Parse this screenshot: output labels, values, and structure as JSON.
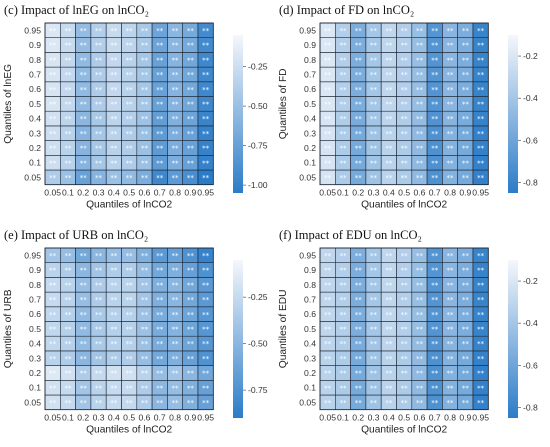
{
  "chart_data": [
    {
      "type": "heatmap",
      "title": "(c) Impact of lnEG on lnCO₂",
      "xlabel": "Quantiles of lnCO2",
      "ylabel": "Quantiles of lnEG",
      "x_categories": [
        "0.05",
        "0.1",
        "0.2",
        "0.3",
        "0.4",
        "0.5",
        "0.6",
        "0.7",
        "0.8",
        "0.9",
        "0.95"
      ],
      "y_categories": [
        "0.05",
        "0.1",
        "0.2",
        "0.3",
        "0.4",
        "0.5",
        "0.6",
        "0.7",
        "0.8",
        "0.9",
        "0.95"
      ],
      "cell_label": "**",
      "color_range": [
        -1.05,
        -0.05
      ],
      "colorbar_ticks": [
        -0.25,
        -0.5,
        -0.75,
        -1.0
      ],
      "colorbar_tick_labels": [
        "-0.25",
        "-0.50",
        "-0.75",
        "-1.00"
      ],
      "column_values": [
        -0.2,
        -0.3,
        -0.55,
        -0.4,
        -0.3,
        -0.35,
        -0.45,
        -0.75,
        -0.6,
        -0.7,
        -0.95
      ],
      "row_values": [
        -0.2,
        -0.05,
        -0.05,
        -0.05,
        -0.03,
        0.0,
        0.0,
        0.0,
        0.0,
        0.02,
        0.02
      ],
      "colors": {
        "light": "#f5f7fb",
        "dark": "#2b7cc8"
      }
    },
    {
      "type": "heatmap",
      "title": "(d) Impact of FD on lnCO₂",
      "xlabel": "Quantiles of lnCO2",
      "ylabel": "Quantiles of FD",
      "x_categories": [
        "0.05",
        "0.1",
        "0.2",
        "0.3",
        "0.4",
        "0.5",
        "0.6",
        "0.7",
        "0.8",
        "0.9",
        "0.95"
      ],
      "y_categories": [
        "0.05",
        "0.1",
        "0.2",
        "0.3",
        "0.4",
        "0.5",
        "0.6",
        "0.7",
        "0.8",
        "0.9",
        "0.95"
      ],
      "cell_label": "**",
      "color_range": [
        -0.85,
        -0.1
      ],
      "colorbar_ticks": [
        -0.2,
        -0.4,
        -0.6,
        -0.8
      ],
      "colorbar_tick_labels": [
        "-0.2",
        "-0.4",
        "-0.6",
        "-0.8"
      ],
      "column_values": [
        -0.2,
        -0.35,
        -0.55,
        -0.4,
        -0.3,
        -0.35,
        -0.45,
        -0.7,
        -0.5,
        -0.55,
        -0.8
      ],
      "row_values": [
        -0.02,
        -0.02,
        -0.02,
        -0.02,
        -0.01,
        0.0,
        0.0,
        0.0,
        0.0,
        0.0,
        0.0
      ],
      "colors": {
        "light": "#f5f7fb",
        "dark": "#2b7cc8"
      }
    },
    {
      "type": "heatmap",
      "title": "(e) Impact of URB on lnCO₂",
      "xlabel": "Quantiles of lnCO2",
      "ylabel": "Quantiles of URB",
      "x_categories": [
        "0.05",
        "0.1",
        "0.2",
        "0.3",
        "0.4",
        "0.5",
        "0.6",
        "0.7",
        "0.8",
        "0.9",
        "0.95"
      ],
      "y_categories": [
        "0.05",
        "0.1",
        "0.2",
        "0.3",
        "0.4",
        "0.5",
        "0.6",
        "0.7",
        "0.8",
        "0.9",
        "0.95"
      ],
      "cell_label": "**",
      "color_range": [
        -0.9,
        -0.05
      ],
      "colorbar_ticks": [
        -0.25,
        -0.5,
        -0.75
      ],
      "colorbar_tick_labels": [
        "-0.25",
        "-0.50",
        "-0.75"
      ],
      "column_values": [
        -0.25,
        -0.3,
        -0.45,
        -0.35,
        -0.3,
        -0.3,
        -0.4,
        -0.55,
        -0.5,
        -0.6,
        -0.7
      ],
      "row_values": [
        0.05,
        0.05,
        0.1,
        -0.05,
        -0.02,
        -0.02,
        -0.02,
        0.0,
        0.0,
        -0.05,
        -0.15
      ],
      "colors": {
        "light": "#f5f7fb",
        "dark": "#2b7cc8"
      }
    },
    {
      "type": "heatmap",
      "title": "(f) Impact of EDU on lnCO₂",
      "xlabel": "Quantiles of lnCO2",
      "ylabel": "Quantiles of EDU",
      "x_categories": [
        "0.05",
        "0.1",
        "0.2",
        "0.3",
        "0.4",
        "0.5",
        "0.6",
        "0.7",
        "0.8",
        "0.9",
        "0.95"
      ],
      "y_categories": [
        "0.05",
        "0.1",
        "0.2",
        "0.3",
        "0.4",
        "0.5",
        "0.6",
        "0.7",
        "0.8",
        "0.9",
        "0.95"
      ],
      "cell_label": "**",
      "color_range": [
        -0.85,
        -0.1
      ],
      "colorbar_ticks": [
        -0.2,
        -0.4,
        -0.6,
        -0.8
      ],
      "colorbar_tick_labels": [
        "-0.2",
        "-0.4",
        "-0.6",
        "-0.8"
      ],
      "column_values": [
        -0.3,
        -0.35,
        -0.55,
        -0.4,
        -0.3,
        -0.35,
        -0.45,
        -0.7,
        -0.5,
        -0.55,
        -0.8
      ],
      "row_values": [
        -0.02,
        -0.02,
        -0.02,
        -0.02,
        -0.01,
        0.0,
        0.0,
        0.0,
        0.0,
        0.0,
        0.0
      ],
      "colors": {
        "light": "#f5f7fb",
        "dark": "#2b7cc8"
      }
    }
  ]
}
